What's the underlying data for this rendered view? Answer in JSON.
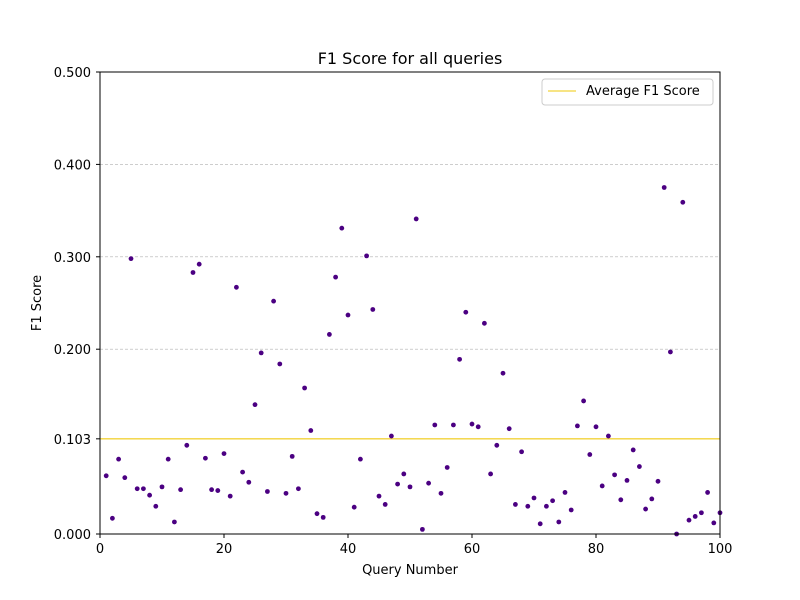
{
  "colors": {
    "point": "#4b0082",
    "average_line": "#f2d33a",
    "grid": "#b0b0b0",
    "axis": "#000000"
  },
  "chart_data": {
    "type": "scatter",
    "title": "F1 Score for all queries",
    "xlabel": "Query Number",
    "ylabel": "F1 Score",
    "xlim": [
      0,
      100
    ],
    "ylim": [
      0,
      0.5
    ],
    "x_ticks": [
      0,
      20,
      40,
      60,
      80,
      100
    ],
    "x_tick_labels": [
      "0",
      "20",
      "40",
      "60",
      "80",
      "100"
    ],
    "y_ticks": [
      0.0,
      0.103,
      0.2,
      0.3,
      0.4,
      0.5
    ],
    "y_tick_labels": [
      "0.000",
      "0.103",
      "0.200",
      "0.300",
      "0.400",
      "0.500"
    ],
    "grid": "y-dashed",
    "legend": {
      "placement": "top-right",
      "entries": [
        "Average F1 Score"
      ]
    },
    "average": 0.103,
    "series": [
      {
        "name": "",
        "x": [
          1,
          2,
          3,
          4,
          5,
          6,
          7,
          8,
          9,
          10,
          11,
          12,
          13,
          14,
          15,
          16,
          17,
          18,
          19,
          20,
          21,
          22,
          23,
          24,
          25,
          26,
          27,
          28,
          29,
          30,
          31,
          32,
          33,
          34,
          35,
          36,
          37,
          38,
          39,
          40,
          41,
          42,
          43,
          44,
          45,
          46,
          47,
          48,
          49,
          50,
          51,
          52,
          53,
          54,
          55,
          56,
          57,
          58,
          59,
          60,
          61,
          62,
          63,
          64,
          65,
          66,
          67,
          68,
          69,
          70,
          71,
          72,
          73,
          74,
          75,
          76,
          77,
          78,
          79,
          80,
          81,
          82,
          83,
          84,
          85,
          86,
          87,
          88,
          89,
          90,
          91,
          92,
          93,
          94,
          95,
          96,
          97,
          98,
          99,
          100
        ],
        "y": [
          0.063,
          0.017,
          0.081,
          0.061,
          0.298,
          0.049,
          0.049,
          0.042,
          0.03,
          0.051,
          0.081,
          0.013,
          0.048,
          0.096,
          0.283,
          0.292,
          0.082,
          0.048,
          0.047,
          0.087,
          0.041,
          0.267,
          0.067,
          0.056,
          0.14,
          0.196,
          0.046,
          0.252,
          0.184,
          0.044,
          0.084,
          0.049,
          0.158,
          0.112,
          0.022,
          0.018,
          0.216,
          0.278,
          0.331,
          0.237,
          0.029,
          0.081,
          0.301,
          0.243,
          0.041,
          0.032,
          0.106,
          0.054,
          0.065,
          0.051,
          0.341,
          0.005,
          0.055,
          0.118,
          0.044,
          0.072,
          0.118,
          0.189,
          0.24,
          0.119,
          0.116,
          0.228,
          0.065,
          0.096,
          0.174,
          0.114,
          0.032,
          0.089,
          0.03,
          0.039,
          0.011,
          0.03,
          0.036,
          0.013,
          0.045,
          0.026,
          0.117,
          0.144,
          0.086,
          0.116,
          0.052,
          0.106,
          0.064,
          0.037,
          0.058,
          0.091,
          0.073,
          0.027,
          0.038,
          0.057,
          0.375,
          0.197,
          0.0,
          0.359,
          0.015,
          0.019,
          0.023,
          0.045,
          0.012,
          0.023
        ]
      }
    ]
  }
}
